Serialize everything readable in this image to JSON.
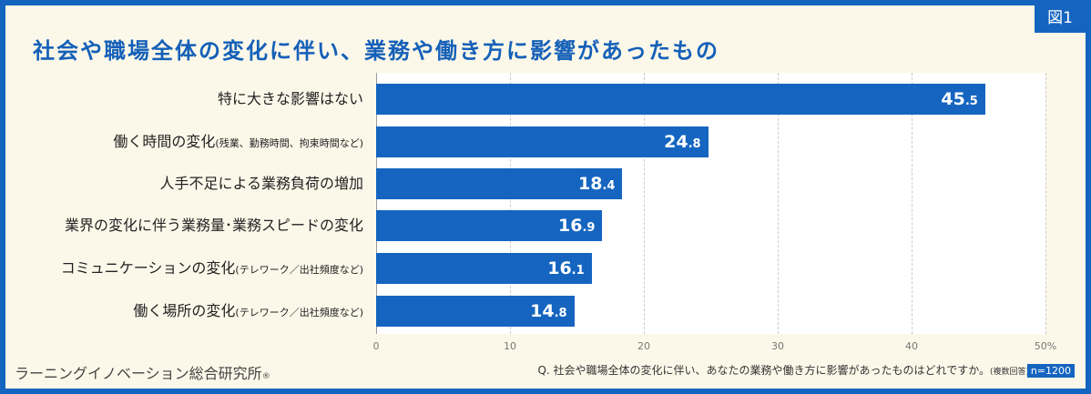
{
  "figure_label": "図1",
  "footer": {
    "brand": "ラーニングイノベーション総合研究所",
    "brand_mark": "®",
    "question": "Q. 社会や職場全体の変化に伴い、あなたの業務や働き方に影響があったものはどれですか。",
    "question_note": "(複数回答)",
    "sample": "n=1200"
  },
  "chart_data": {
    "type": "bar",
    "orientation": "horizontal",
    "title": "社会や職場全体の変化に伴い、業務や働き方に影響があったもの",
    "categories": [
      {
        "main": "特に大きな影響はない",
        "note": ""
      },
      {
        "main": "働く時間の変化",
        "note": "(残業、勤務時間、拘束時間など)"
      },
      {
        "main": "人手不足による業務負荷の増加",
        "note": ""
      },
      {
        "main": "業界の変化に伴う業務量･業務スピードの変化",
        "note": ""
      },
      {
        "main": "コミュニケーションの変化",
        "note": "(テレワーク／出社頻度など)"
      },
      {
        "main": "働く場所の変化",
        "note": "(テレワーク／出社頻度など)"
      }
    ],
    "values": [
      45.5,
      24.8,
      18.4,
      16.9,
      16.1,
      14.8
    ],
    "xlim": [
      0,
      50
    ],
    "xticks": [
      "0",
      "10",
      "20",
      "30",
      "40",
      "50%"
    ],
    "grid": true,
    "bar_color": "#1565c0"
  }
}
